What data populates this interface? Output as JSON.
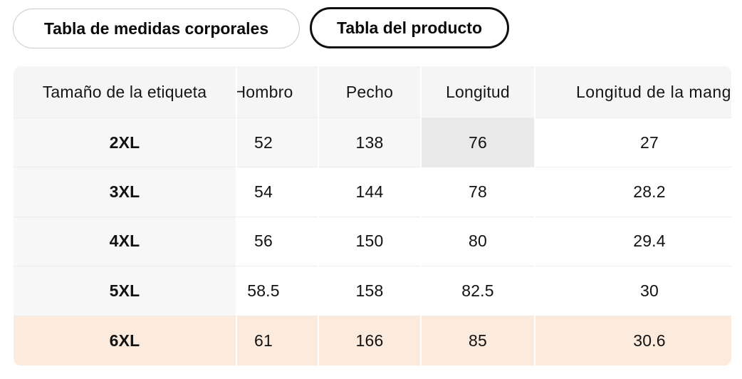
{
  "tabs": [
    {
      "label": "Tabla de medidas corporales",
      "selected": false
    },
    {
      "label": "Tabla del producto",
      "selected": true
    }
  ],
  "table": {
    "columns": [
      "Tamaño de la etiqueta",
      "Hombro",
      "Pecho",
      "Longitud",
      "Longitud de la manga"
    ],
    "rows": [
      {
        "label": "2XL",
        "values": [
          "52",
          "138",
          "76",
          "27"
        ]
      },
      {
        "label": "3XL",
        "values": [
          "54",
          "144",
          "78",
          "28.2"
        ]
      },
      {
        "label": "4XL",
        "values": [
          "56",
          "150",
          "80",
          "29.4"
        ]
      },
      {
        "label": "5XL",
        "values": [
          "58.5",
          "158",
          "82.5",
          "30"
        ]
      },
      {
        "label": "6XL",
        "values": [
          "61",
          "166",
          "85",
          "30.6"
        ]
      }
    ],
    "highlighted_cell": {
      "row": "2XL",
      "column": "Longitud",
      "value": "76"
    },
    "selected_row": "6XL"
  },
  "colors": {
    "header_bg": "#f5f5f6",
    "label_column_bg": "#f7f7f8",
    "hover_row_bg": "#f7f7f8",
    "hover_cell_bg": "#e9e9ea",
    "selected_row_bg": "#fcebdc",
    "row_divider": "#ececec",
    "column_gap": "#ffffff",
    "tab_border": "#c9c9c9",
    "tab_selected_border": "#0f0f0f"
  }
}
